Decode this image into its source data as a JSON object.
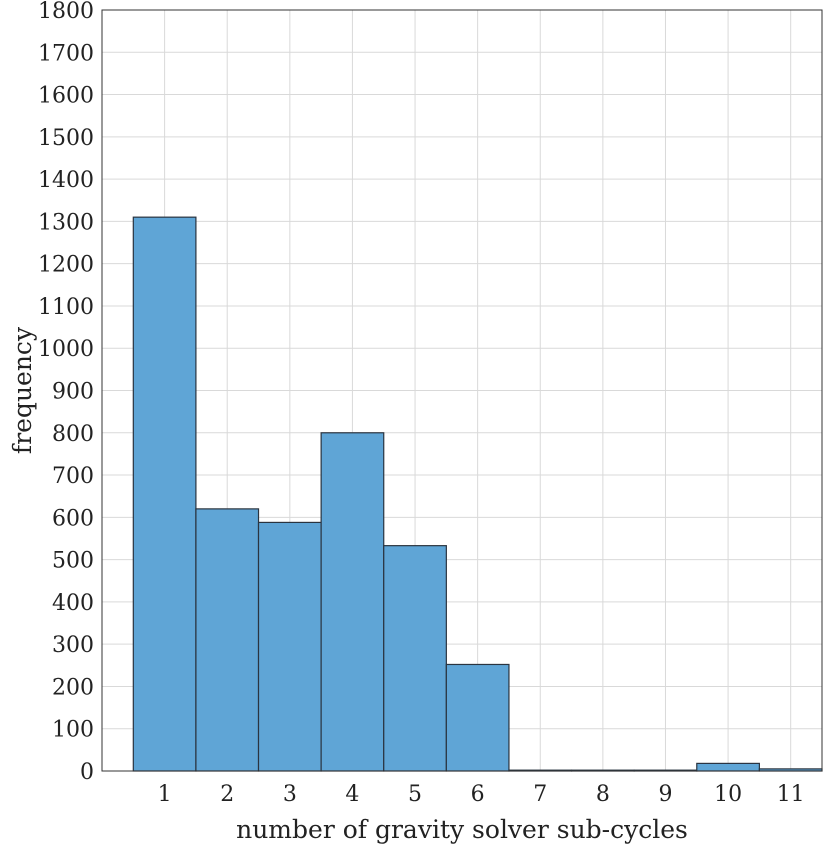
{
  "chart_data": {
    "type": "bar",
    "xlabel": "number of gravity solver sub-cycles",
    "ylabel": "frequency",
    "categories": [
      1,
      2,
      3,
      4,
      5,
      6,
      7,
      8,
      9,
      10,
      11
    ],
    "values": [
      1310,
      620,
      588,
      800,
      533,
      252,
      2,
      2,
      2,
      18,
      5
    ],
    "xlim": [
      0,
      11.5
    ],
    "ylim": [
      0,
      1800
    ],
    "yticks": [
      0,
      100,
      200,
      300,
      400,
      500,
      600,
      700,
      800,
      900,
      1000,
      1100,
      1200,
      1300,
      1400,
      1500,
      1600,
      1700,
      1800
    ],
    "grid": true,
    "bar_color": "#5fa5d6",
    "bar_edge_color": "#2a3440",
    "grid_color": "#d9d9d9"
  }
}
